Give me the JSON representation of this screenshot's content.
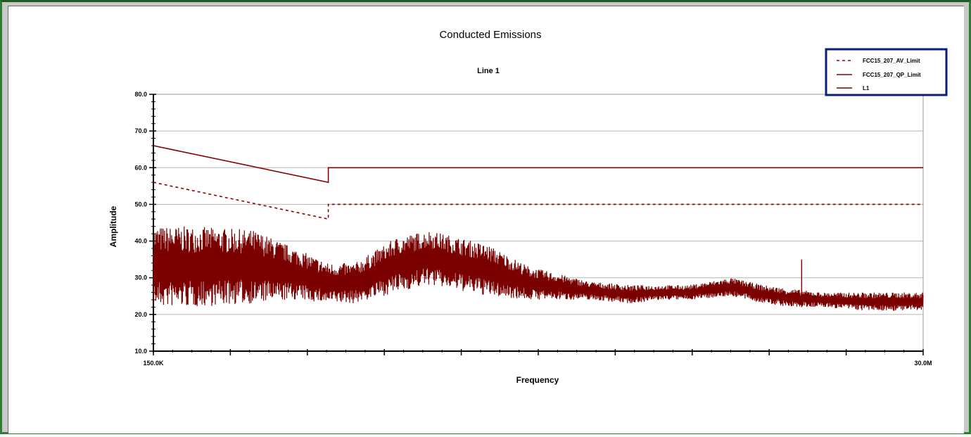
{
  "chart_data": {
    "type": "line",
    "title": "Conducted Emissions",
    "subtitle": "Line 1",
    "xlabel": "Frequency",
    "ylabel": "Amplitude",
    "ylim": [
      10,
      80
    ],
    "y_ticks": [
      "10.0",
      "20.0",
      "30.0",
      "40.0",
      "50.0",
      "60.0",
      "70.0",
      "80.0"
    ],
    "x_ticks": [
      "150.0K",
      "30.0M"
    ],
    "x_scale": "log",
    "xlim_mhz": [
      0.15,
      30
    ],
    "grid": "horizontal",
    "legend_position": "top-right",
    "legend": [
      {
        "name": "FCC15_207_AV_Limit",
        "style": "dashed",
        "color": "#8b0000"
      },
      {
        "name": "FCC15_207_QP_Limit",
        "style": "solid",
        "color": "#8b0000"
      },
      {
        "name": "L1",
        "style": "solid",
        "color": "#7b0000"
      }
    ],
    "series": [
      {
        "name": "FCC15_207_AV_Limit",
        "x_mhz": [
          0.15,
          0.5,
          0.5,
          30
        ],
        "values": [
          56,
          46,
          50,
          50
        ]
      },
      {
        "name": "FCC15_207_QP_Limit",
        "x_mhz": [
          0.15,
          0.5,
          0.5,
          30
        ],
        "values": [
          66,
          56,
          60,
          60
        ]
      },
      {
        "name": "L1",
        "x_mhz": [
          0.15,
          0.2,
          0.3,
          0.4,
          0.5,
          0.6,
          0.8,
          1.0,
          1.5,
          2.0,
          3.0,
          4.0,
          5.0,
          6.0,
          8.0,
          10.0,
          12.0,
          15.0,
          20.0,
          25.0,
          30.0
        ],
        "min_values": [
          22,
          22,
          23,
          24,
          23,
          23,
          26,
          28,
          25,
          24,
          24,
          23,
          24,
          24,
          25,
          23,
          22,
          22,
          21,
          21,
          21
        ],
        "max_values": [
          44,
          44,
          43,
          38,
          34,
          34,
          41,
          43,
          39,
          33,
          29,
          28,
          28,
          28,
          30,
          28,
          27,
          26,
          26,
          26,
          26
        ],
        "spikes": [
          {
            "x_mhz": 13.0,
            "value": 35
          }
        ]
      }
    ]
  }
}
